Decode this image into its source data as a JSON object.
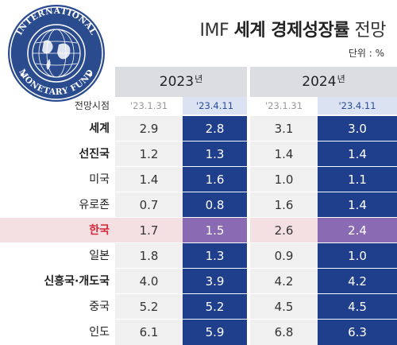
{
  "logo": {
    "name": "IMF seal",
    "text": "INTERNATIONAL MONETARY FUND"
  },
  "title": {
    "part1": "IMF ",
    "part2": "세계 경제성장률",
    "part3": " 전망"
  },
  "unit": "단위 : %",
  "header": {
    "years": [
      {
        "year": "2023",
        "suffix": "년"
      },
      {
        "year": "2024",
        "suffix": "년"
      }
    ],
    "row_label": "전망시점",
    "dates": [
      "'23.1.31",
      "'23.4.11",
      "'23.1.31",
      "'23.4.11"
    ]
  },
  "colors": {
    "header_grey": "#dcdde1",
    "cell_grey": "#f0f0f0",
    "cell_blue": "#1f3f8c",
    "highlight_purple": "#8a6bb3",
    "highlight_pink": "#f4dfe3",
    "highlight_text": "#d4283a"
  },
  "chart_data": {
    "type": "table",
    "title": "IMF 세계 경제성장률 전망",
    "unit": "%",
    "columns": [
      "2023년 '23.1.31",
      "2023년 '23.4.11",
      "2024년 '23.1.31",
      "2024년 '23.4.11"
    ],
    "rows": [
      {
        "name": "세계",
        "style": "bold",
        "values": [
          "2.9",
          "2.8",
          "3.1",
          "3.0"
        ]
      },
      {
        "name": "선진국",
        "style": "bold",
        "values": [
          "1.2",
          "1.3",
          "1.4",
          "1.4"
        ]
      },
      {
        "name": "미국",
        "style": "normal",
        "values": [
          "1.4",
          "1.6",
          "1.0",
          "1.1"
        ]
      },
      {
        "name": "유로존",
        "style": "normal",
        "values": [
          "0.7",
          "0.8",
          "1.6",
          "1.4"
        ]
      },
      {
        "name": "한국",
        "style": "highlight",
        "values": [
          "1.7",
          "1.5",
          "2.6",
          "2.4"
        ]
      },
      {
        "name": "일본",
        "style": "normal",
        "values": [
          "1.8",
          "1.3",
          "0.9",
          "1.0"
        ]
      },
      {
        "name": "신흥국·개도국",
        "style": "bold",
        "values": [
          "4.0",
          "3.9",
          "4.2",
          "4.2"
        ]
      },
      {
        "name": "중국",
        "style": "normal",
        "values": [
          "5.2",
          "5.2",
          "4.5",
          "4.5"
        ]
      },
      {
        "name": "인도",
        "style": "normal",
        "values": [
          "6.1",
          "5.9",
          "6.8",
          "6.3"
        ]
      }
    ]
  }
}
